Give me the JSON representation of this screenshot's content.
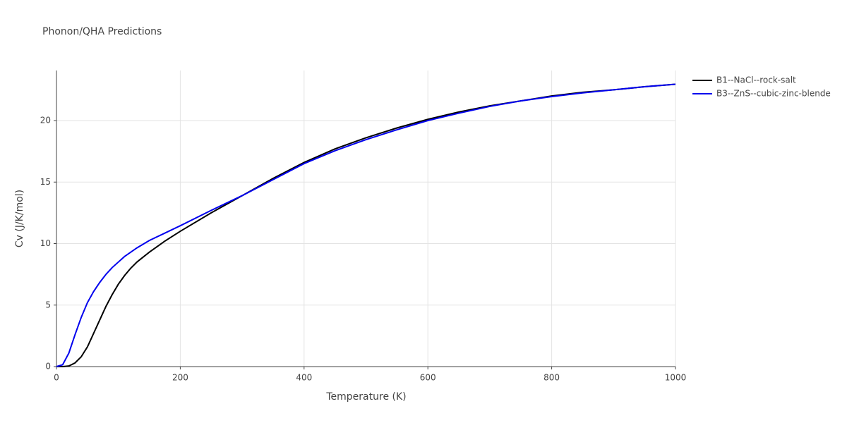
{
  "chart_data": {
    "type": "line",
    "title": "Phonon/QHA Predictions",
    "x_label": "Temperature (K)",
    "y_label": "Cv (J/K/mol)",
    "x": [
      0,
      10,
      20,
      30,
      40,
      50,
      60,
      70,
      80,
      90,
      100,
      110,
      120,
      130,
      140,
      150,
      175,
      200,
      250,
      300,
      350,
      400,
      450,
      500,
      550,
      600,
      650,
      700,
      750,
      800,
      850,
      900,
      950,
      1000
    ],
    "series": [
      {
        "name": "B1--NaCl--rock-salt",
        "color": "#000000",
        "values": [
          0,
          0.0,
          0.05,
          0.3,
          0.8,
          1.6,
          2.7,
          3.8,
          4.9,
          5.85,
          6.7,
          7.4,
          8.0,
          8.5,
          8.9,
          9.3,
          10.2,
          11.0,
          12.5,
          13.9,
          15.3,
          16.6,
          17.7,
          18.6,
          19.4,
          20.1,
          20.7,
          21.2,
          21.6,
          22.0,
          22.3,
          22.5,
          22.75,
          22.95
        ]
      },
      {
        "name": "B3--ZnS--cubic-zinc-blende",
        "color": "#0000ee",
        "values": [
          0,
          0.15,
          1.1,
          2.6,
          4.0,
          5.2,
          6.1,
          6.85,
          7.5,
          8.05,
          8.5,
          8.95,
          9.3,
          9.65,
          9.95,
          10.25,
          10.85,
          11.45,
          12.7,
          13.9,
          15.2,
          16.5,
          17.55,
          18.45,
          19.25,
          20.0,
          20.6,
          21.15,
          21.6,
          21.95,
          22.25,
          22.5,
          22.75,
          22.95
        ]
      }
    ],
    "xlim": [
      0,
      1000
    ],
    "xticks": [
      0,
      200,
      400,
      600,
      800,
      1000
    ],
    "ylim": [
      0,
      24.07
    ],
    "yticks": [
      0,
      5,
      10,
      15,
      20
    ],
    "grid": true,
    "legend": "right"
  }
}
